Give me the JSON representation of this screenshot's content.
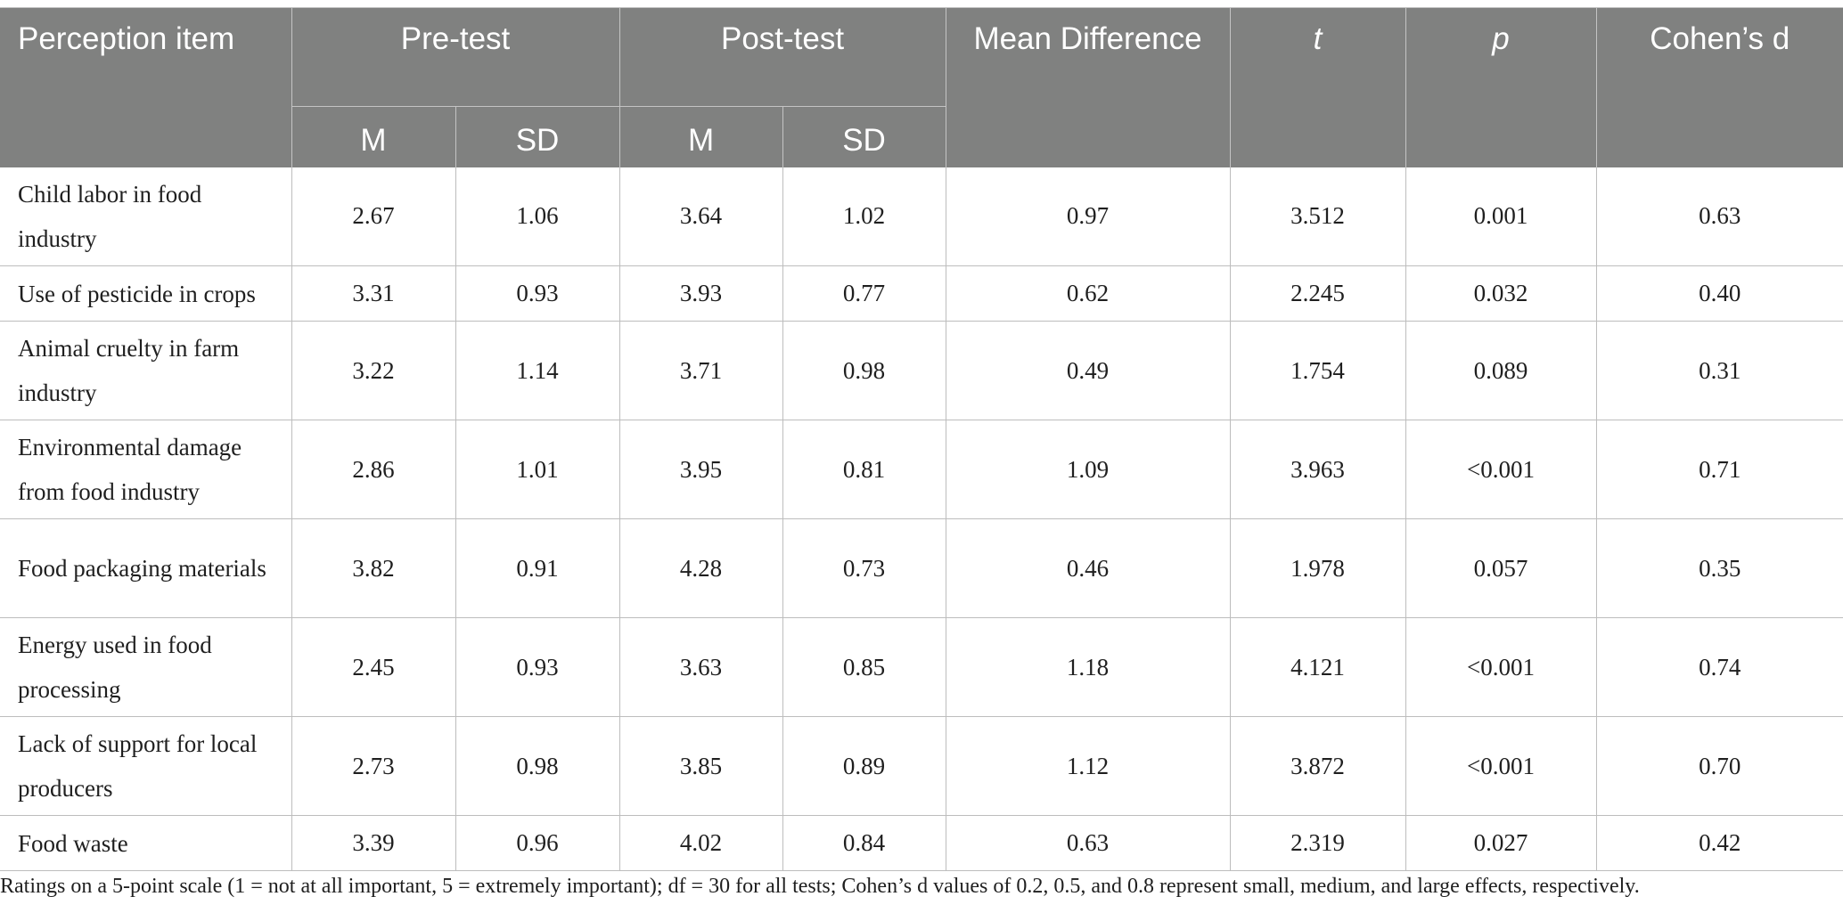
{
  "table": {
    "headers": {
      "item": "Perception item",
      "pre": "Pre-test",
      "post": "Post-test",
      "mean_diff": "Mean Difference",
      "t": "t",
      "p": "p",
      "d": "Cohen’s d",
      "m": "M",
      "sd": "SD"
    },
    "rows": [
      {
        "item": "Child labor in food industry",
        "pre_m": "2.67",
        "pre_sd": "1.06",
        "post_m": "3.64",
        "post_sd": "1.02",
        "diff": "0.97",
        "t": "3.512",
        "p": "0.001",
        "d": "0.63"
      },
      {
        "item": "Use of pesticide in crops",
        "pre_m": "3.31",
        "pre_sd": "0.93",
        "post_m": "3.93",
        "post_sd": "0.77",
        "diff": "0.62",
        "t": "2.245",
        "p": "0.032",
        "d": "0.40"
      },
      {
        "item": "Animal cruelty in farm industry",
        "pre_m": "3.22",
        "pre_sd": "1.14",
        "post_m": "3.71",
        "post_sd": "0.98",
        "diff": "0.49",
        "t": "1.754",
        "p": "0.089",
        "d": "0.31"
      },
      {
        "item": "Environmental damage from food industry",
        "pre_m": "2.86",
        "pre_sd": "1.01",
        "post_m": "3.95",
        "post_sd": "0.81",
        "diff": "1.09",
        "t": "3.963",
        "p": "<0.001",
        "d": "0.71"
      },
      {
        "item": "Food packaging materials",
        "pre_m": "3.82",
        "pre_sd": "0.91",
        "post_m": "4.28",
        "post_sd": "0.73",
        "diff": "0.46",
        "t": "1.978",
        "p": "0.057",
        "d": "0.35"
      },
      {
        "item": "Energy used in food processing",
        "pre_m": "2.45",
        "pre_sd": "0.93",
        "post_m": "3.63",
        "post_sd": "0.85",
        "diff": "1.18",
        "t": "4.121",
        "p": "<0.001",
        "d": "0.74"
      },
      {
        "item": "Lack of support for local producers",
        "pre_m": "2.73",
        "pre_sd": "0.98",
        "post_m": "3.85",
        "post_sd": "0.89",
        "diff": "1.12",
        "t": "3.872",
        "p": "<0.001",
        "d": "0.70"
      },
      {
        "item": "Food waste",
        "pre_m": "3.39",
        "pre_sd": "0.96",
        "post_m": "4.02",
        "post_sd": "0.84",
        "diff": "0.63",
        "t": "2.319",
        "p": "0.027",
        "d": "0.42"
      }
    ]
  },
  "footnote": "Ratings on a 5-point scale (1 = not at all important, 5 = extremely important); df = 30 for all tests; Cohen’s d values of 0.2, 0.5, and 0.8 represent small, medium, and large effects, respectively.",
  "colors": {
    "header_bg": "#808180",
    "header_text": "#ffffff",
    "grid": "#bdbdbd"
  }
}
